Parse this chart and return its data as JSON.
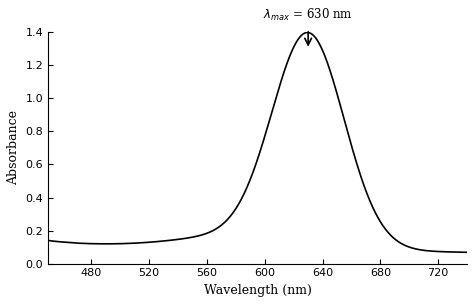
{
  "x_min": 450,
  "x_max": 740,
  "y_min": 0,
  "y_max": 1.4,
  "x_ticks": [
    480,
    520,
    560,
    600,
    640,
    680,
    720
  ],
  "y_ticks": [
    0,
    0.2,
    0.4,
    0.6,
    0.8,
    1.0,
    1.2,
    1.4
  ],
  "xlabel": "Wavelength (nm)",
  "ylabel": "Absorbance",
  "lambda_max": 630,
  "lambda_max_label": "λ",
  "lambda_max_text": "λ$_{max}$ = 630 nm",
  "peak_absorbance": 1.29,
  "background_color": "#ffffff",
  "line_color": "#000000"
}
